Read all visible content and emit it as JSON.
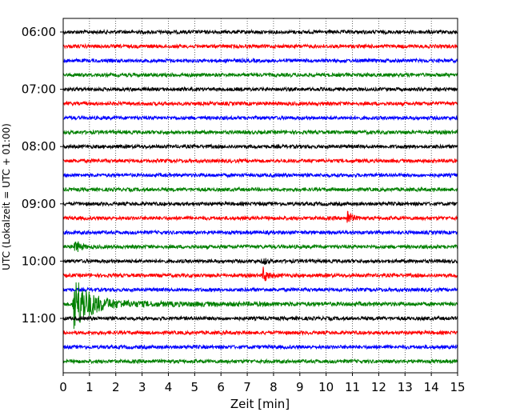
{
  "chart_data": {
    "type": "line",
    "subtype": "helicorder-seismogram",
    "title": "",
    "xlabel": "Zeit  [min]",
    "ylabel": "UTC (Lokalzeit = UTC + 01:00)",
    "xlim": [
      0,
      15
    ],
    "x_ticks": [
      0,
      1,
      2,
      3,
      4,
      5,
      6,
      7,
      8,
      9,
      10,
      11,
      12,
      13,
      14,
      15
    ],
    "x_tick_labels": [
      "0",
      "1",
      "2",
      "3",
      "4",
      "5",
      "6",
      "7",
      "8",
      "9",
      "10",
      "11",
      "12",
      "13",
      "14",
      "15"
    ],
    "vertical_grid": "dotted",
    "y_tick_labels": [
      "06:00",
      "07:00",
      "08:00",
      "09:00",
      "10:00",
      "11:00"
    ],
    "y_tick_rows": [
      0,
      4,
      8,
      12,
      16,
      20
    ],
    "trace_colors": [
      "#000000",
      "#ff0000",
      "#0000ff",
      "#008000"
    ],
    "traces": [
      {
        "start": "06:00",
        "color": "#000000",
        "events": []
      },
      {
        "start": "06:15",
        "color": "#ff0000",
        "events": []
      },
      {
        "start": "06:30",
        "color": "#0000ff",
        "events": []
      },
      {
        "start": "06:45",
        "color": "#008000",
        "events": []
      },
      {
        "start": "07:00",
        "color": "#000000",
        "events": []
      },
      {
        "start": "07:15",
        "color": "#ff0000",
        "events": []
      },
      {
        "start": "07:30",
        "color": "#0000ff",
        "events": []
      },
      {
        "start": "07:45",
        "color": "#008000",
        "events": []
      },
      {
        "start": "08:00",
        "color": "#000000",
        "events": []
      },
      {
        "start": "08:15",
        "color": "#ff0000",
        "events": []
      },
      {
        "start": "08:30",
        "color": "#0000ff",
        "events": []
      },
      {
        "start": "08:45",
        "color": "#008000",
        "events": []
      },
      {
        "start": "09:00",
        "color": "#000000",
        "events": []
      },
      {
        "start": "09:15",
        "color": "#ff0000",
        "events": [
          {
            "t_min": 10.8,
            "amplitude": 1.1,
            "duration_min": 0.4
          }
        ]
      },
      {
        "start": "09:30",
        "color": "#0000ff",
        "events": []
      },
      {
        "start": "09:45",
        "color": "#008000",
        "events": [
          {
            "t_min": 0.45,
            "amplitude": 1.0,
            "duration_min": 0.5
          }
        ]
      },
      {
        "start": "10:00",
        "color": "#000000",
        "events": [
          {
            "t_min": 7.6,
            "amplitude": 0.6,
            "duration_min": 0.3
          }
        ]
      },
      {
        "start": "10:15",
        "color": "#ff0000",
        "events": [
          {
            "t_min": 7.6,
            "amplitude": 1.0,
            "duration_min": 0.5
          }
        ]
      },
      {
        "start": "10:30",
        "color": "#0000ff",
        "events": []
      },
      {
        "start": "10:45",
        "color": "#008000",
        "events": [
          {
            "t_min": 0.4,
            "amplitude": 3.6,
            "duration_min": 13
          }
        ]
      },
      {
        "start": "11:00",
        "color": "#000000",
        "events": []
      },
      {
        "start": "11:15",
        "color": "#ff0000",
        "events": []
      },
      {
        "start": "11:30",
        "color": "#0000ff",
        "events": []
      },
      {
        "start": "11:45",
        "color": "#008000",
        "events": []
      }
    ],
    "noise_amplitude": 0.22
  }
}
